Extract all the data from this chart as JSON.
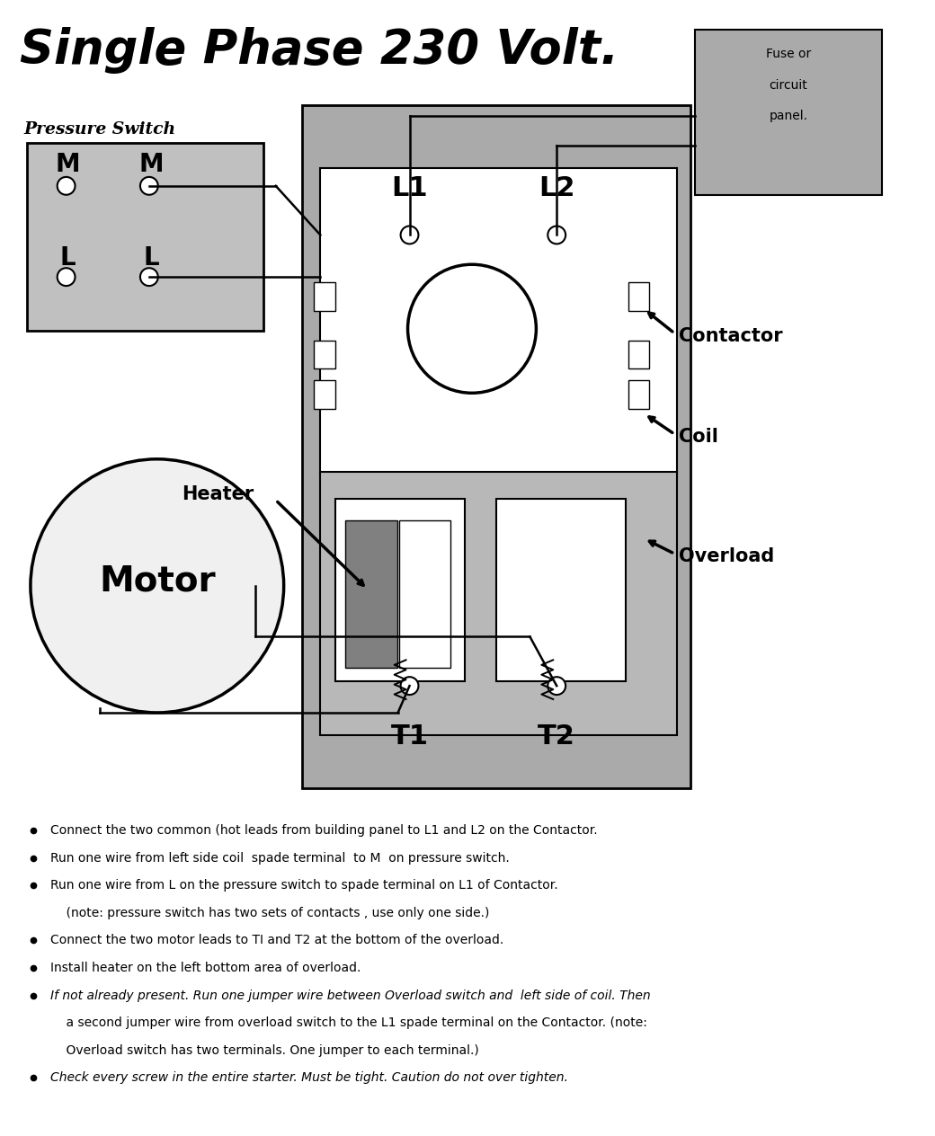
{
  "title": "Single Phase 230 Volt.",
  "bg_color": "#ffffff",
  "fuse_box_color": "#aaaaaa",
  "contactor_color": "#aaaaaa",
  "overload_color": "#b8b8b8",
  "ps_color": "#c0c0c0",
  "motor_color": "#f0f0f0",
  "bullet_lines": [
    [
      true,
      "normal",
      "Connect the two common (hot leads from building panel to L1 and L2 on the Contactor."
    ],
    [
      true,
      "normal",
      "Run one wire from left side coil  spade terminal  to M  on pressure switch."
    ],
    [
      true,
      "normal",
      "Run one wire from L on the pressure switch to spade terminal on L1 of Contactor."
    ],
    [
      false,
      "normal",
      "    (note: pressure switch has two sets of contacts , use only one side.)"
    ],
    [
      true,
      "normal",
      "Connect the two motor leads to TI and T2 at the bottom of the overload."
    ],
    [
      true,
      "normal",
      "Install heater on the left bottom area of overload."
    ],
    [
      true,
      "italic",
      "If not already present. Run one jumper wire between Overload switch and  left side of coil. Then"
    ],
    [
      false,
      "normal",
      "    a second jumper wire from overload switch to the L1 spade terminal on the Contactor. (note:"
    ],
    [
      false,
      "normal",
      "    Overload switch has two terminals. One jumper to each terminal.)"
    ],
    [
      true,
      "italic",
      "Check every screw in the entire starter. Must be tight. Caution do not over tighten."
    ]
  ]
}
